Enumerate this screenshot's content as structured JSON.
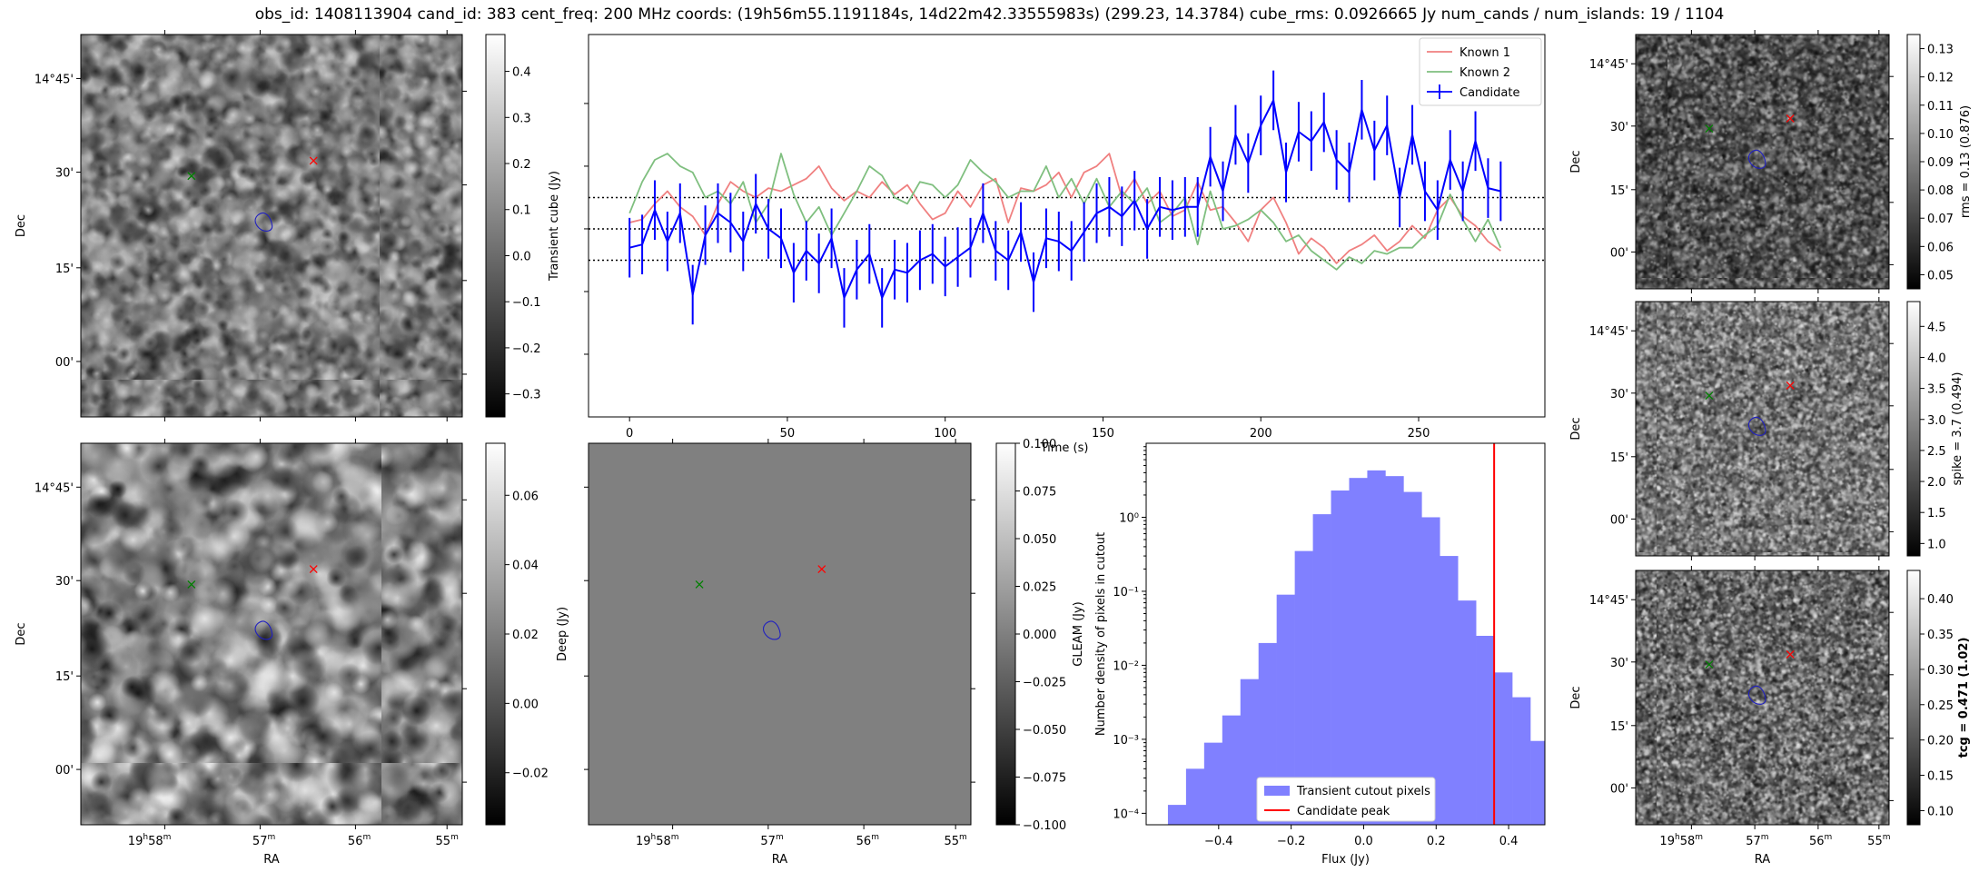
{
  "header": {
    "title": "obs_id: 1408113904 cand_id: 383 cent_freq: 200 MHz coords: (19h56m55.1191184s, 14d22m42.33555983s) (299.23, 14.3784) cube_rms: 0.0926665 Jy num_cands / num_islands: 19 / 1104"
  },
  "colors": {
    "known1": "#f08080",
    "known2": "#7fbf7f",
    "candidate": "#0000ff",
    "hist": "#8080ff",
    "peak": "#ff0000",
    "red_marker": "#ff0000",
    "green_marker": "#008000",
    "contour": "#2020c0"
  },
  "panels": {
    "transient": {
      "ylabels": [
        "14°45'",
        "30'",
        "15'",
        "00'"
      ],
      "dec_label": "Dec",
      "cbar_label": "Transient cube (Jy)",
      "cbar_ticks": [
        "0.4",
        "0.3",
        "0.2",
        "0.1",
        "0.0",
        "−0.1",
        "−0.2",
        "−0.3"
      ],
      "cbar_range": [
        -0.35,
        0.48
      ]
    },
    "deep": {
      "ylabels": [
        "14°45'",
        "30'",
        "15'",
        "00'"
      ],
      "dec_label": "Dec",
      "ra_label": "RA",
      "xlabels": [
        "19h58m",
        "57m",
        "56m",
        "55m"
      ],
      "cbar_label": "Deep (Jy)",
      "cbar_ticks": [
        "0.06",
        "0.04",
        "0.02",
        "0.00",
        "−0.02"
      ],
      "cbar_range": [
        -0.035,
        0.075
      ]
    },
    "gleam": {
      "ra_label": "RA",
      "xlabels": [
        "19h58m",
        "57m",
        "56m",
        "55m"
      ],
      "cbar_label": "GLEAM (Jy)",
      "cbar_ticks": [
        "0.100",
        "0.075",
        "0.050",
        "0.025",
        "0.000",
        "−0.025",
        "−0.050",
        "−0.075",
        "−0.100"
      ],
      "cbar_range": [
        -0.1,
        0.1
      ]
    },
    "rms": {
      "ylabels": [
        "14°45'",
        "30'",
        "15'",
        "00'"
      ],
      "dec_label": "Dec",
      "cbar_label": "rms = 0.13 (0.876)",
      "cbar_ticks": [
        "0.13",
        "0.12",
        "0.11",
        "0.10",
        "0.09",
        "0.08",
        "0.07",
        "0.06",
        "0.05"
      ],
      "cbar_range": [
        0.045,
        0.135
      ]
    },
    "spike": {
      "ylabels": [
        "14°45'",
        "30'",
        "15'",
        "00'"
      ],
      "dec_label": "Dec",
      "cbar_label": "spike = 3.7 (0.494)",
      "cbar_ticks": [
        "4.5",
        "4.0",
        "3.5",
        "3.0",
        "2.5",
        "2.0",
        "1.5",
        "1.0"
      ],
      "cbar_range": [
        0.8,
        4.9
      ]
    },
    "tcg": {
      "ylabels": [
        "14°45'",
        "30'",
        "15'",
        "00'"
      ],
      "dec_label": "Dec",
      "ra_label": "RA",
      "xlabels": [
        "19h58m",
        "57m",
        "56m",
        "55m"
      ],
      "cbar_label": "tcg = 0.471 (1.02)",
      "cbar_ticks": [
        "0.40",
        "0.35",
        "0.30",
        "0.25",
        "0.20",
        "0.15",
        "0.10"
      ],
      "cbar_range": [
        0.08,
        0.44
      ]
    }
  },
  "chart_data": [
    {
      "type": "line",
      "title": "",
      "xlabel": "Time (s)",
      "ylabel": "",
      "xlim": [
        -13,
        290
      ],
      "ylim": [
        -0.6,
        0.62
      ],
      "xticks": [
        0,
        50,
        100,
        150,
        200,
        250
      ],
      "hlines": [
        0.1,
        0.0,
        -0.1
      ],
      "legend": [
        "Known 1",
        "Known 2",
        "Candidate"
      ],
      "legend_position": "top-right",
      "series": [
        {
          "name": "Known 1",
          "x": [
            0,
            4,
            8,
            12,
            16,
            20,
            24,
            28,
            32,
            36,
            40,
            44,
            48,
            52,
            56,
            60,
            64,
            68,
            72,
            76,
            80,
            84,
            88,
            92,
            96,
            100,
            104,
            108,
            112,
            116,
            120,
            124,
            128,
            132,
            136,
            140,
            144,
            148,
            152,
            156,
            160,
            164,
            168,
            172,
            176,
            180,
            184,
            188,
            192,
            196,
            200,
            204,
            208,
            212,
            216,
            220,
            224,
            228,
            232,
            236,
            240,
            244,
            248,
            252,
            256,
            260,
            264,
            268,
            272,
            276
          ],
          "y": [
            0.02,
            0.03,
            0.08,
            0.12,
            0.07,
            0.04,
            -0.02,
            0.08,
            0.15,
            0.12,
            0.1,
            0.13,
            0.12,
            0.14,
            0.16,
            0.2,
            0.13,
            0.09,
            0.12,
            0.1,
            0.15,
            0.11,
            0.14,
            0.08,
            0.03,
            0.05,
            0.12,
            0.07,
            0.14,
            0.16,
            0.02,
            0.13,
            0.12,
            0.14,
            0.18,
            0.1,
            0.18,
            0.2,
            0.24,
            0.1,
            0.16,
            0.08,
            0.12,
            0.04,
            0.06,
            0.15,
            0.06,
            0.07,
            0.02,
            -0.04,
            0.06,
            0.1,
            0.02,
            -0.08,
            -0.03,
            -0.06,
            -0.11,
            -0.07,
            -0.05,
            -0.02,
            -0.07,
            -0.04,
            0.01,
            -0.03,
            0.06,
            0.1,
            0.04,
            0.01,
            -0.04,
            -0.07
          ]
        },
        {
          "name": "Known 2",
          "x": [
            0,
            4,
            8,
            12,
            16,
            20,
            24,
            28,
            32,
            36,
            40,
            44,
            48,
            52,
            56,
            60,
            64,
            68,
            72,
            76,
            80,
            84,
            88,
            92,
            96,
            100,
            104,
            108,
            112,
            116,
            120,
            124,
            128,
            132,
            136,
            140,
            144,
            148,
            152,
            156,
            160,
            164,
            168,
            172,
            176,
            180,
            184,
            188,
            192,
            196,
            200,
            204,
            208,
            212,
            216,
            220,
            224,
            228,
            232,
            236,
            240,
            244,
            248,
            252,
            256,
            260,
            264,
            268,
            272,
            276
          ],
          "y": [
            0.05,
            0.15,
            0.22,
            0.24,
            0.2,
            0.18,
            0.1,
            0.12,
            0.08,
            0.15,
            0.02,
            0.08,
            0.24,
            0.11,
            0.02,
            0.07,
            -0.02,
            0.05,
            0.12,
            0.2,
            0.17,
            0.1,
            0.08,
            0.15,
            0.14,
            0.1,
            0.14,
            0.22,
            0.18,
            0.15,
            0.1,
            0.12,
            0.12,
            0.2,
            0.1,
            0.16,
            0.08,
            0.16,
            0.07,
            0.12,
            0.08,
            0.13,
            0.02,
            0.05,
            0.1,
            -0.05,
            0.12,
            0.0,
            0.01,
            0.03,
            0.06,
            0.02,
            -0.04,
            -0.02,
            -0.07,
            -0.1,
            -0.13,
            -0.09,
            -0.11,
            -0.07,
            -0.08,
            -0.06,
            -0.06,
            -0.02,
            0.01,
            0.11,
            0.03,
            -0.04,
            0.03,
            -0.06
          ]
        },
        {
          "name": "Candidate",
          "x": [
            0,
            4,
            8,
            12,
            16,
            20,
            24,
            28,
            32,
            36,
            40,
            44,
            48,
            52,
            56,
            60,
            64,
            68,
            72,
            76,
            80,
            84,
            88,
            92,
            96,
            100,
            104,
            108,
            112,
            116,
            120,
            124,
            128,
            132,
            136,
            140,
            144,
            148,
            152,
            156,
            160,
            164,
            168,
            172,
            176,
            180,
            184,
            188,
            192,
            196,
            200,
            204,
            208,
            212,
            216,
            220,
            224,
            228,
            232,
            236,
            240,
            244,
            248,
            252,
            256,
            260,
            264,
            268,
            272,
            276
          ],
          "y": [
            -0.06,
            -0.05,
            0.06,
            -0.04,
            0.05,
            -0.21,
            -0.02,
            0.05,
            0.02,
            -0.04,
            0.08,
            0.0,
            -0.03,
            -0.14,
            -0.07,
            -0.11,
            -0.03,
            -0.22,
            -0.13,
            -0.08,
            -0.22,
            -0.13,
            -0.14,
            -0.1,
            -0.08,
            -0.12,
            -0.09,
            -0.06,
            0.05,
            -0.07,
            -0.1,
            -0.01,
            -0.17,
            -0.03,
            -0.04,
            -0.07,
            -0.01,
            0.05,
            0.07,
            0.04,
            0.09,
            0.0,
            0.07,
            0.06,
            0.07,
            0.07,
            0.23,
            0.12,
            0.3,
            0.21,
            0.33,
            0.41,
            0.18,
            0.31,
            0.28,
            0.34,
            0.22,
            0.18,
            0.38,
            0.25,
            0.33,
            0.1,
            0.3,
            0.12,
            0.06,
            0.22,
            0.12,
            0.28,
            0.13,
            0.12
          ],
          "err": 0.095
        }
      ]
    },
    {
      "type": "bar",
      "title": "",
      "xlabel": "Flux (Jy)",
      "ylabel": "Number density of pixels in cutout",
      "yscale": "log",
      "xlim": [
        -0.6,
        0.5
      ],
      "ylim": [
        7e-05,
        10
      ],
      "xticks": [
        -0.4,
        -0.2,
        0.0,
        0.2,
        0.4
      ],
      "xtick_labels": [
        "−0.4",
        "−0.2",
        "0.0",
        "0.2",
        "0.4"
      ],
      "yticks": [
        0.0001,
        0.001,
        0.01,
        0.1,
        1
      ],
      "ytick_labels": [
        "10⁻⁴",
        "10⁻³",
        "10⁻²",
        "10⁻¹",
        "10⁰"
      ],
      "bin_edges": [
        -0.54,
        -0.49,
        -0.44,
        -0.39,
        -0.34,
        -0.29,
        -0.24,
        -0.19,
        -0.14,
        -0.09,
        -0.04,
        0.01,
        0.06,
        0.11,
        0.16,
        0.21,
        0.26,
        0.31,
        0.36,
        0.41,
        0.46
      ],
      "values": [
        0.00013,
        0.0004,
        0.0009,
        0.0021,
        0.0065,
        0.02,
        0.09,
        0.35,
        1.1,
        2.3,
        3.4,
        4.3,
        3.6,
        2.2,
        1.0,
        0.3,
        0.075,
        0.025,
        0.008,
        0.0037,
        0.00095
      ],
      "peak": 0.36,
      "legend": [
        "Transient cutout pixels",
        "Candidate peak"
      ],
      "legend_position": "lower-center"
    }
  ]
}
